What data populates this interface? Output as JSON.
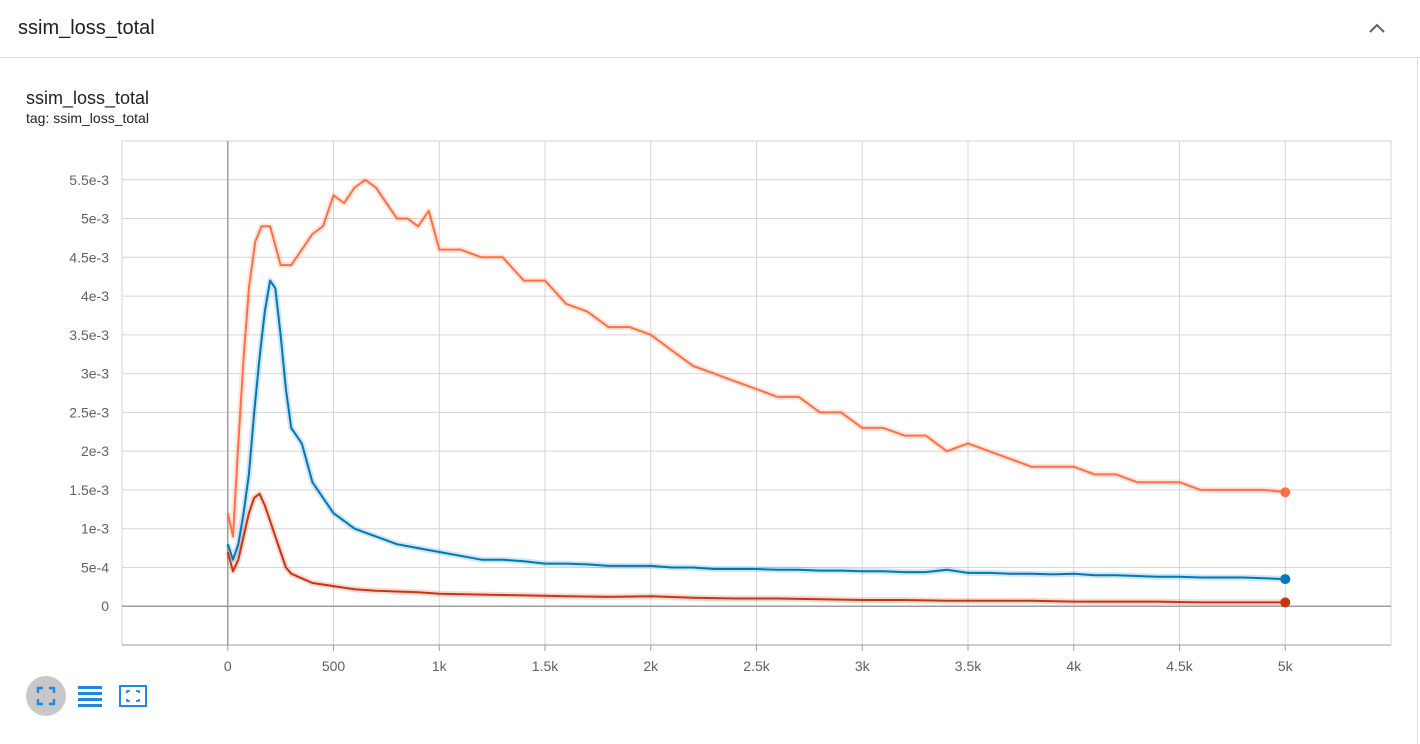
{
  "section": {
    "title": "ssim_loss_total"
  },
  "card": {
    "title": "ssim_loss_total",
    "tag": "tag: ssim_loss_total"
  },
  "icons": {
    "collapse": "chevron-up-icon",
    "fit": "fit-domain-icon",
    "log": "toggle-log-scale-icon",
    "expand": "expand-icon"
  },
  "colors": {
    "orange": "#ff7043",
    "blue": "#0077bb",
    "red": "#cc3311",
    "grid": "#d6d6d6",
    "axis": "#9e9e9e",
    "toolbar_icon": "#1e88e5"
  },
  "chart_data": {
    "type": "line",
    "title": "",
    "xlabel": "",
    "ylabel": "",
    "xlim": [
      -500,
      5500
    ],
    "ylim": [
      -0.0005,
      0.006
    ],
    "x_ticks": [
      0,
      500,
      1000,
      1500,
      2000,
      2500,
      3000,
      3500,
      4000,
      4500,
      5000
    ],
    "x_tick_labels": [
      "0",
      "500",
      "1k",
      "1.5k",
      "2k",
      "2.5k",
      "3k",
      "3.5k",
      "4k",
      "4.5k",
      "5k"
    ],
    "y_ticks": [
      0,
      0.0005,
      0.001,
      0.0015,
      0.002,
      0.0025,
      0.003,
      0.0035,
      0.004,
      0.0045,
      0.005,
      0.0055
    ],
    "y_tick_labels": [
      "0",
      "5e-4",
      "1e-3",
      "1.5e-3",
      "2e-3",
      "2.5e-3",
      "3e-3",
      "3.5e-3",
      "4e-3",
      "4.5e-3",
      "5e-3",
      "5.5e-3"
    ],
    "grid": true,
    "legend": "none",
    "series": [
      {
        "color": "#ff7043",
        "x": [
          0,
          25,
          50,
          75,
          100,
          130,
          160,
          200,
          250,
          300,
          350,
          400,
          450,
          500,
          550,
          600,
          650,
          700,
          750,
          800,
          850,
          900,
          950,
          1000,
          1100,
          1200,
          1300,
          1400,
          1500,
          1600,
          1700,
          1800,
          1900,
          2000,
          2100,
          2200,
          2300,
          2400,
          2500,
          2600,
          2700,
          2800,
          2900,
          3000,
          3100,
          3200,
          3300,
          3400,
          3500,
          3600,
          3700,
          3800,
          3900,
          4000,
          4100,
          4200,
          4300,
          4400,
          4500,
          4600,
          4700,
          4800,
          4900,
          5000
        ],
        "y": [
          0.0012,
          0.0009,
          0.0021,
          0.0032,
          0.0041,
          0.0047,
          0.0049,
          0.0049,
          0.0044,
          0.0044,
          0.0046,
          0.0048,
          0.0049,
          0.0053,
          0.0052,
          0.0054,
          0.0055,
          0.0054,
          0.0052,
          0.005,
          0.005,
          0.0049,
          0.0051,
          0.0046,
          0.0046,
          0.0045,
          0.0045,
          0.0042,
          0.0042,
          0.0039,
          0.0038,
          0.0036,
          0.0036,
          0.0035,
          0.0033,
          0.0031,
          0.003,
          0.0029,
          0.0028,
          0.0027,
          0.0027,
          0.0025,
          0.0025,
          0.0023,
          0.0023,
          0.0022,
          0.0022,
          0.002,
          0.0021,
          0.002,
          0.0019,
          0.0018,
          0.0018,
          0.0018,
          0.0017,
          0.0017,
          0.0016,
          0.0016,
          0.0016,
          0.0015,
          0.0015,
          0.0015,
          0.0015,
          0.00147
        ],
        "final": 0.00147
      },
      {
        "color": "#0077bb",
        "x": [
          0,
          25,
          50,
          75,
          100,
          125,
          150,
          175,
          200,
          225,
          250,
          275,
          300,
          350,
          400,
          450,
          500,
          550,
          600,
          700,
          800,
          900,
          1000,
          1100,
          1200,
          1300,
          1400,
          1500,
          1600,
          1700,
          1800,
          1900,
          2000,
          2100,
          2200,
          2300,
          2400,
          2500,
          2600,
          2700,
          2800,
          2900,
          3000,
          3100,
          3200,
          3300,
          3400,
          3500,
          3600,
          3700,
          3800,
          3900,
          4000,
          4100,
          4200,
          4300,
          4400,
          4500,
          4600,
          4700,
          4800,
          4900,
          5000
        ],
        "y": [
          0.0008,
          0.0006,
          0.0008,
          0.0012,
          0.0017,
          0.0025,
          0.0032,
          0.0038,
          0.0042,
          0.0041,
          0.0035,
          0.0028,
          0.0023,
          0.0021,
          0.0016,
          0.0014,
          0.0012,
          0.0011,
          0.001,
          0.0009,
          0.0008,
          0.00075,
          0.0007,
          0.00065,
          0.0006,
          0.0006,
          0.00058,
          0.00055,
          0.00055,
          0.00054,
          0.00052,
          0.00052,
          0.00052,
          0.0005,
          0.0005,
          0.00048,
          0.00048,
          0.00048,
          0.00047,
          0.00047,
          0.00046,
          0.00046,
          0.00045,
          0.00045,
          0.00044,
          0.00044,
          0.00047,
          0.00043,
          0.00043,
          0.00042,
          0.00042,
          0.00041,
          0.00042,
          0.0004,
          0.0004,
          0.00039,
          0.00038,
          0.00038,
          0.00037,
          0.00037,
          0.00037,
          0.00036,
          0.00035
        ],
        "final": 0.00035
      },
      {
        "color": "#cc3311",
        "x": [
          0,
          25,
          50,
          75,
          100,
          125,
          150,
          175,
          200,
          225,
          250,
          275,
          300,
          350,
          400,
          450,
          500,
          600,
          700,
          800,
          900,
          1000,
          1200,
          1400,
          1600,
          1800,
          2000,
          2200,
          2400,
          2600,
          2800,
          3000,
          3200,
          3400,
          3600,
          3800,
          4000,
          4200,
          4400,
          4600,
          4800,
          5000
        ],
        "y": [
          0.0007,
          0.00045,
          0.0006,
          0.0009,
          0.0012,
          0.0014,
          0.00145,
          0.0013,
          0.0011,
          0.0009,
          0.0007,
          0.0005,
          0.00042,
          0.00036,
          0.0003,
          0.00028,
          0.00026,
          0.00022,
          0.0002,
          0.00019,
          0.00018,
          0.00016,
          0.00015,
          0.00014,
          0.00013,
          0.00012,
          0.00013,
          0.00011,
          0.0001,
          0.0001,
          9e-05,
          8e-05,
          8e-05,
          7e-05,
          7e-05,
          7e-05,
          6e-05,
          6e-05,
          6e-05,
          5e-05,
          5e-05,
          5e-05
        ],
        "final": 5e-05
      }
    ]
  }
}
